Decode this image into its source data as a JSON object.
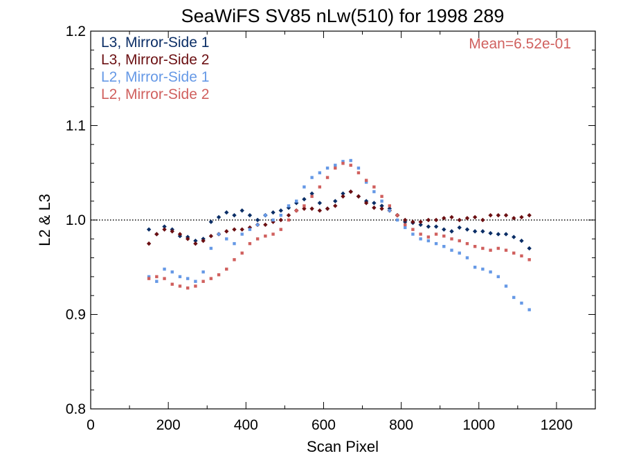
{
  "chart_data": {
    "type": "scatter",
    "title": "SeaWiFS SV85 nLw(510) for 1998 289",
    "xlabel": "Scan Pixel",
    "ylabel": "L2 & L3",
    "xlim": [
      0,
      1300
    ],
    "ylim": [
      0.8,
      1.2
    ],
    "xticks": [
      "0",
      "200",
      "400",
      "600",
      "800",
      "1000",
      "1200"
    ],
    "yticks": [
      "0.8",
      "0.9",
      "1.0",
      "1.1",
      "1.2"
    ],
    "xtick_values": [
      0,
      200,
      400,
      600,
      800,
      1000,
      1200
    ],
    "ytick_values": [
      0.8,
      0.9,
      1.0,
      1.1,
      1.2
    ],
    "reference_line": 1.0,
    "grid": false,
    "legend_position": "top-left",
    "annotation": {
      "text": "Mean=6.52e-01",
      "position": "top-right",
      "color": "#d0605e"
    },
    "series": [
      {
        "name": "L3, Mirror-Side 1",
        "color": "#0b2e66",
        "marker": "diamond",
        "points": [
          [
            150,
            0.99
          ],
          [
            170,
            0.985
          ],
          [
            190,
            0.993
          ],
          [
            210,
            0.99
          ],
          [
            230,
            0.983
          ],
          [
            250,
            0.982
          ],
          [
            270,
            0.978
          ],
          [
            290,
            0.98
          ],
          [
            310,
            0.998
          ],
          [
            330,
            1.003
          ],
          [
            350,
            1.008
          ],
          [
            370,
            1.005
          ],
          [
            390,
            1.01
          ],
          [
            410,
            1.005
          ],
          [
            430,
            1.0
          ],
          [
            450,
            1.005
          ],
          [
            470,
            1.008
          ],
          [
            490,
            1.01
          ],
          [
            510,
            1.013
          ],
          [
            530,
            1.018
          ],
          [
            550,
            1.022
          ],
          [
            570,
            1.028
          ],
          [
            590,
            1.018
          ],
          [
            610,
            1.012
          ],
          [
            630,
            1.02
          ],
          [
            650,
            1.028
          ],
          [
            670,
            1.03
          ],
          [
            690,
            1.025
          ],
          [
            710,
            1.02
          ],
          [
            730,
            1.018
          ],
          [
            750,
            1.015
          ],
          [
            770,
            1.012
          ],
          [
            790,
            1.005
          ],
          [
            810,
            0.998
          ],
          [
            830,
            0.997
          ],
          [
            850,
            0.995
          ],
          [
            870,
            0.993
          ],
          [
            890,
            0.993
          ],
          [
            910,
            0.99
          ],
          [
            930,
            0.988
          ],
          [
            950,
            0.992
          ],
          [
            970,
            0.99
          ],
          [
            990,
            0.988
          ],
          [
            1010,
            0.988
          ],
          [
            1030,
            0.986
          ],
          [
            1050,
            0.985
          ],
          [
            1070,
            0.985
          ],
          [
            1090,
            0.982
          ],
          [
            1110,
            0.978
          ],
          [
            1130,
            0.97
          ]
        ]
      },
      {
        "name": "L3, Mirror-Side 2",
        "color": "#6b0f12",
        "marker": "diamond",
        "points": [
          [
            150,
            0.975
          ],
          [
            170,
            0.985
          ],
          [
            190,
            0.99
          ],
          [
            210,
            0.988
          ],
          [
            230,
            0.985
          ],
          [
            250,
            0.98
          ],
          [
            270,
            0.975
          ],
          [
            290,
            0.978
          ],
          [
            310,
            0.983
          ],
          [
            330,
            0.985
          ],
          [
            350,
            0.988
          ],
          [
            370,
            0.99
          ],
          [
            390,
            0.99
          ],
          [
            410,
            0.992
          ],
          [
            430,
            0.995
          ],
          [
            450,
            0.995
          ],
          [
            470,
            0.998
          ],
          [
            490,
            1.0
          ],
          [
            510,
            1.005
          ],
          [
            530,
            1.01
          ],
          [
            550,
            1.012
          ],
          [
            570,
            1.012
          ],
          [
            590,
            1.01
          ],
          [
            610,
            1.012
          ],
          [
            630,
            1.015
          ],
          [
            650,
            1.025
          ],
          [
            670,
            1.03
          ],
          [
            690,
            1.025
          ],
          [
            710,
            1.018
          ],
          [
            730,
            1.013
          ],
          [
            750,
            1.012
          ],
          [
            770,
            1.01
          ],
          [
            790,
            1.005
          ],
          [
            810,
            1.0
          ],
          [
            830,
            0.998
          ],
          [
            850,
            0.998
          ],
          [
            870,
            1.0
          ],
          [
            890,
            1.0
          ],
          [
            910,
            1.002
          ],
          [
            930,
            1.003
          ],
          [
            950,
            1.0
          ],
          [
            970,
            1.002
          ],
          [
            990,
            1.003
          ],
          [
            1010,
            1.0
          ],
          [
            1030,
            1.005
          ],
          [
            1050,
            1.005
          ],
          [
            1070,
            1.005
          ],
          [
            1090,
            1.002
          ],
          [
            1110,
            1.003
          ],
          [
            1130,
            1.005
          ]
        ]
      },
      {
        "name": "L2, Mirror-Side 1",
        "color": "#6699e6",
        "marker": "square",
        "points": [
          [
            150,
            0.94
          ],
          [
            170,
            0.935
          ],
          [
            190,
            0.948
          ],
          [
            210,
            0.945
          ],
          [
            230,
            0.94
          ],
          [
            250,
            0.938
          ],
          [
            270,
            0.935
          ],
          [
            290,
            0.945
          ],
          [
            310,
            0.97
          ],
          [
            330,
            0.985
          ],
          [
            350,
            0.98
          ],
          [
            370,
            0.975
          ],
          [
            390,
            0.985
          ],
          [
            410,
            0.99
          ],
          [
            430,
            0.995
          ],
          [
            450,
            1.005
          ],
          [
            470,
            1.0
          ],
          [
            490,
            1.005
          ],
          [
            510,
            1.015
          ],
          [
            530,
            1.02
          ],
          [
            550,
            1.035
          ],
          [
            570,
            1.045
          ],
          [
            590,
            1.05
          ],
          [
            610,
            1.055
          ],
          [
            630,
            1.058
          ],
          [
            650,
            1.062
          ],
          [
            670,
            1.063
          ],
          [
            690,
            1.055
          ],
          [
            710,
            1.04
          ],
          [
            730,
            1.03
          ],
          [
            750,
            1.02
          ],
          [
            770,
            1.01
          ],
          [
            790,
            1.0
          ],
          [
            810,
            0.992
          ],
          [
            830,
            0.985
          ],
          [
            850,
            0.98
          ],
          [
            870,
            0.978
          ],
          [
            890,
            0.975
          ],
          [
            910,
            0.972
          ],
          [
            930,
            0.968
          ],
          [
            950,
            0.965
          ],
          [
            970,
            0.96
          ],
          [
            990,
            0.95
          ],
          [
            1010,
            0.948
          ],
          [
            1030,
            0.945
          ],
          [
            1050,
            0.94
          ],
          [
            1070,
            0.93
          ],
          [
            1090,
            0.918
          ],
          [
            1110,
            0.912
          ],
          [
            1130,
            0.905
          ]
        ]
      },
      {
        "name": "L2, Mirror-Side 2",
        "color": "#d0605e",
        "marker": "square",
        "points": [
          [
            150,
            0.938
          ],
          [
            170,
            0.94
          ],
          [
            190,
            0.938
          ],
          [
            210,
            0.932
          ],
          [
            230,
            0.93
          ],
          [
            250,
            0.928
          ],
          [
            270,
            0.93
          ],
          [
            290,
            0.935
          ],
          [
            310,
            0.938
          ],
          [
            330,
            0.942
          ],
          [
            350,
            0.948
          ],
          [
            370,
            0.958
          ],
          [
            390,
            0.965
          ],
          [
            410,
            0.975
          ],
          [
            430,
            0.98
          ],
          [
            450,
            0.983
          ],
          [
            470,
            0.985
          ],
          [
            490,
            0.99
          ],
          [
            510,
            1.0
          ],
          [
            530,
            1.01
          ],
          [
            550,
            1.015
          ],
          [
            570,
            1.025
          ],
          [
            590,
            1.035
          ],
          [
            610,
            1.045
          ],
          [
            630,
            1.055
          ],
          [
            650,
            1.06
          ],
          [
            670,
            1.058
          ],
          [
            690,
            1.05
          ],
          [
            710,
            1.042
          ],
          [
            730,
            1.035
          ],
          [
            750,
            1.025
          ],
          [
            770,
            1.015
          ],
          [
            790,
            1.005
          ],
          [
            810,
            0.995
          ],
          [
            830,
            0.99
          ],
          [
            850,
            0.985
          ],
          [
            870,
            0.982
          ],
          [
            890,
            0.985
          ],
          [
            910,
            0.983
          ],
          [
            930,
            0.98
          ],
          [
            950,
            0.978
          ],
          [
            970,
            0.975
          ],
          [
            990,
            0.972
          ],
          [
            1010,
            0.97
          ],
          [
            1030,
            0.968
          ],
          [
            1050,
            0.97
          ],
          [
            1070,
            0.968
          ],
          [
            1090,
            0.965
          ],
          [
            1110,
            0.962
          ],
          [
            1130,
            0.958
          ]
        ]
      }
    ]
  }
}
